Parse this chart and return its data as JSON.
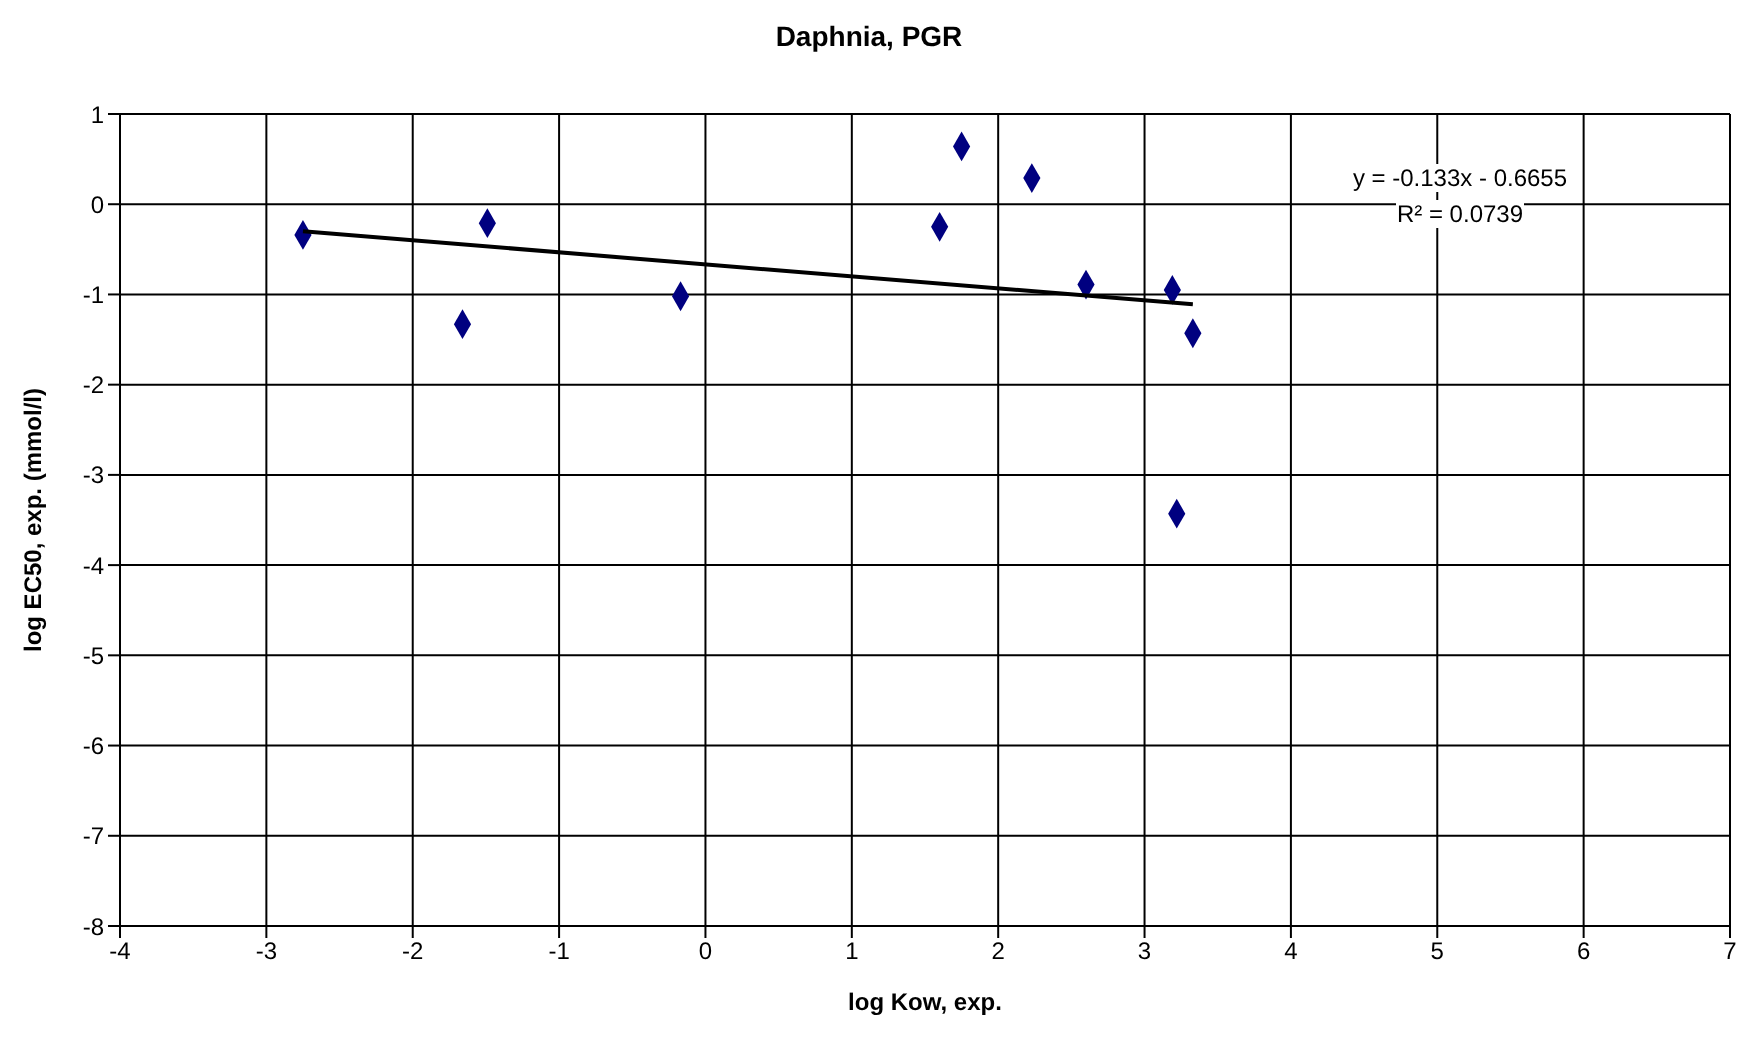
{
  "chart_data": {
    "type": "scatter",
    "title": "Daphnia, PGR",
    "xlabel": "log Kow, exp.",
    "ylabel": "log EC50, exp. (mmol/l)",
    "xlim": [
      -4,
      7
    ],
    "xticks": [
      -4,
      -3,
      -2,
      -1,
      0,
      1,
      2,
      3,
      4,
      5,
      6,
      7
    ],
    "ylim": [
      -8,
      1
    ],
    "yticks": [
      -8,
      -7,
      -6,
      -5,
      -4,
      -3,
      -2,
      -1,
      0,
      1
    ],
    "grid": true,
    "marker": "diamond",
    "annotations": [
      "y = -0.133x - 0.6655",
      "R² = 0.0739"
    ],
    "series": [
      {
        "type": "scatter",
        "color": "#000080",
        "x": [
          -2.75,
          -1.66,
          -1.49,
          -0.17,
          1.75,
          2.23,
          1.6,
          2.6,
          3.19,
          3.33,
          3.22
        ],
        "values": [
          -0.34,
          -1.33,
          -0.21,
          -1.02,
          0.64,
          0.29,
          -0.25,
          -0.89,
          -0.95,
          -1.43,
          -3.43
        ]
      },
      {
        "type": "line",
        "color": "#000000",
        "x": [
          -2.75,
          3.33
        ],
        "values": [
          -0.3,
          -1.11
        ],
        "marker": "none"
      }
    ]
  }
}
